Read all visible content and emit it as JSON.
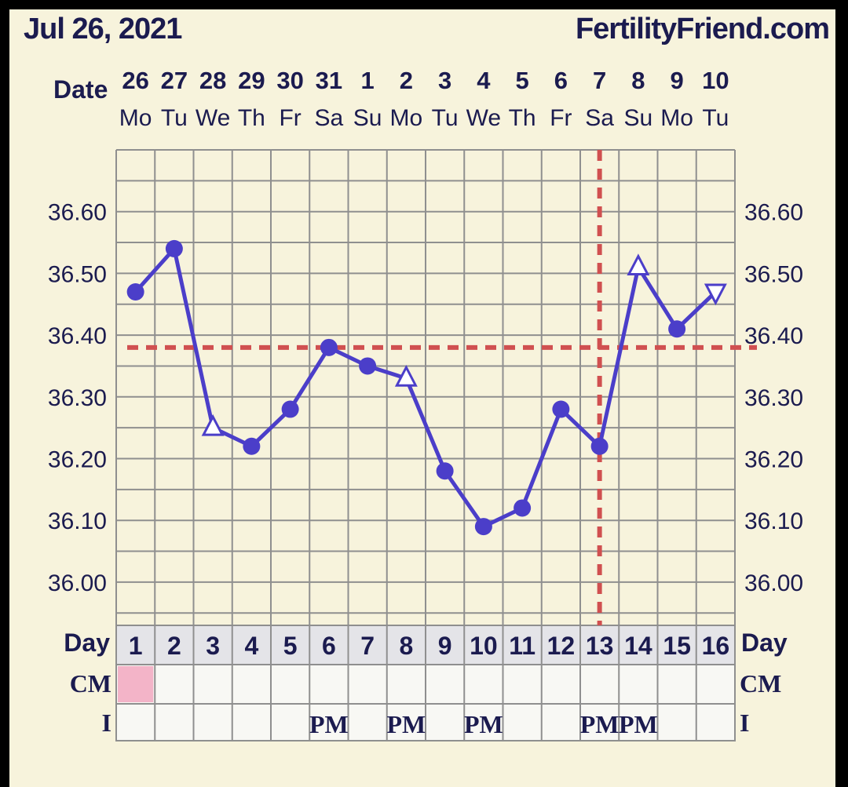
{
  "header": {
    "date": "Jul 26, 2021",
    "brand": "FertilityFriend.com"
  },
  "labels": {
    "date_label": "Date",
    "day_label": "Day",
    "cm_label": "CM",
    "i_label": "I",
    "pm": "PM"
  },
  "colors": {
    "background": "#f7f3dc",
    "line": "#4b3ec9",
    "coverline": "#d05050",
    "cm_mark": "#f3b4c8",
    "grid": "#8f8f8f",
    "text": "#1b1b4f"
  },
  "chart_data": {
    "type": "line",
    "title": "",
    "dates": [
      "26",
      "27",
      "28",
      "29",
      "30",
      "31",
      "1",
      "2",
      "3",
      "4",
      "5",
      "6",
      "7",
      "8",
      "9",
      "10"
    ],
    "weekdays": [
      "Mo",
      "Tu",
      "We",
      "Th",
      "Fr",
      "Sa",
      "Su",
      "Mo",
      "Tu",
      "We",
      "Th",
      "Fr",
      "Sa",
      "Su",
      "Mo",
      "Tu"
    ],
    "cycle_days": [
      "1",
      "2",
      "3",
      "4",
      "5",
      "6",
      "7",
      "8",
      "9",
      "10",
      "11",
      "12",
      "13",
      "14",
      "15",
      "16"
    ],
    "ylim": [
      35.93,
      36.7
    ],
    "yticks": [
      "36.00",
      "36.10",
      "36.20",
      "36.30",
      "36.40",
      "36.50",
      "36.60"
    ],
    "series": [
      {
        "values": [
          36.47,
          36.54,
          36.25,
          36.22,
          36.28,
          36.38,
          36.35,
          36.33,
          36.18,
          36.09,
          36.12,
          36.28,
          36.22,
          36.51,
          36.41,
          36.47
        ],
        "markers": [
          "dot",
          "dot",
          "tri-up",
          "dot",
          "dot",
          "dot",
          "dot",
          "tri-up",
          "dot",
          "dot",
          "dot",
          "dot",
          "dot",
          "tri-up",
          "dot",
          "tri-down"
        ]
      }
    ],
    "coverline": 36.38,
    "ovulation_day": "13",
    "cm": [
      "pink",
      "",
      "",
      "",
      "",
      "",
      "",
      "",
      "",
      "",
      "",
      "",
      "",
      "",
      "",
      ""
    ],
    "intercourse": [
      "",
      "",
      "",
      "",
      "",
      "PM",
      "",
      "PM",
      "",
      "PM",
      "",
      "",
      "PM",
      "PM",
      "",
      ""
    ]
  }
}
